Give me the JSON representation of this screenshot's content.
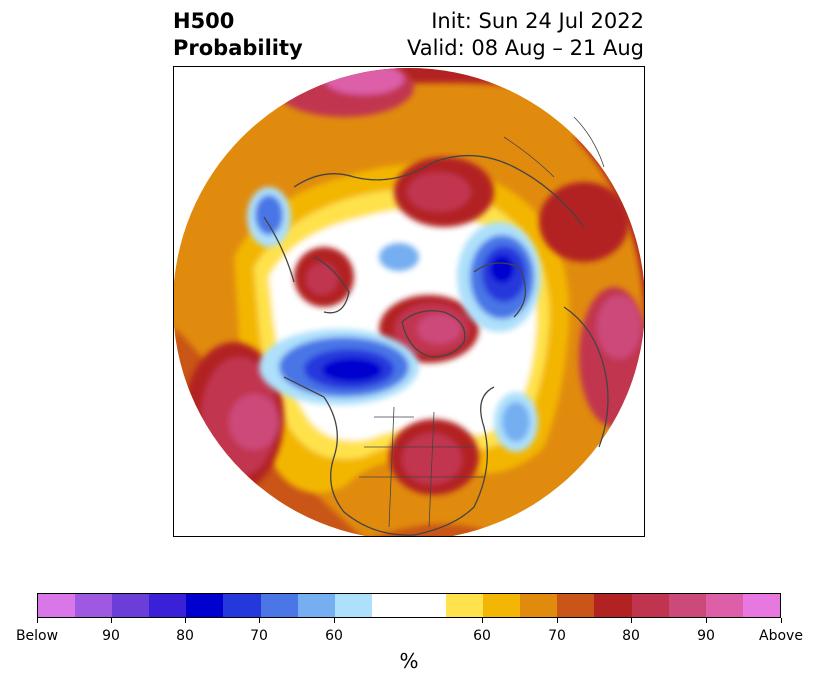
{
  "title": {
    "left_line1": "H500",
    "left_line2": "Probability",
    "right_line1": "Init: Sun 24 Jul 2022",
    "right_line2": "Valid: 08 Aug – 21 Aug"
  },
  "map": {
    "projection": "north-polar-stereographic",
    "variable": "500 hPa geopotential height tercile probability",
    "features": [
      {
        "type": "above",
        "level": "Above",
        "region": "Alaska / North Pacific"
      },
      {
        "type": "above",
        "level": "80",
        "region": "Central United States"
      },
      {
        "type": "above",
        "level": "90",
        "region": "Greenland"
      },
      {
        "type": "above",
        "level": "80",
        "region": "Northern Europe / Scandinavia"
      },
      {
        "type": "above",
        "level": "90",
        "region": "Eastern Siberia"
      },
      {
        "type": "below",
        "level": "80",
        "region": "Canadian Arctic Archipelago / Beaufort Sea"
      },
      {
        "type": "below",
        "level": "80",
        "region": "Barents / Kara Sea"
      },
      {
        "type": "below",
        "level": "70",
        "region": "North Atlantic"
      },
      {
        "type": "below",
        "level": "70",
        "region": "Western Europe"
      }
    ]
  },
  "colorbar": {
    "colors": [
      "#d977e8",
      "#9f59e0",
      "#6b3ed9",
      "#3a20d6",
      "#0000cf",
      "#2538dc",
      "#4a76e6",
      "#75aef1",
      "#ade0fb",
      "#ffffff",
      "#ffffff",
      "#ffe24c",
      "#f3b605",
      "#e08b0e",
      "#c95519",
      "#b22222",
      "#c13450",
      "#cc4a7a",
      "#dc5fa8",
      "#e678e0"
    ],
    "tick_labels": [
      "Below",
      "90",
      "80",
      "70",
      "60",
      "60",
      "70",
      "80",
      "90",
      "Above"
    ],
    "units": "%"
  }
}
